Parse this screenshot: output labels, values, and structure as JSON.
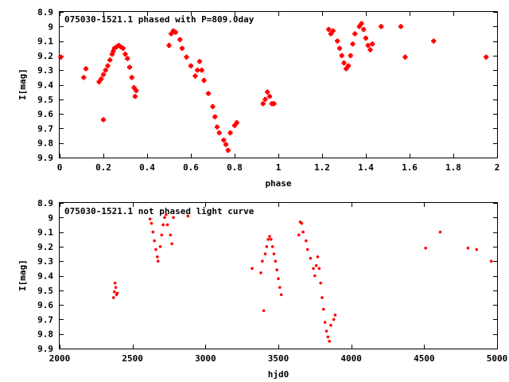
{
  "chart_data": [
    {
      "type": "scatter",
      "title": "075030-1521.1 phased with P=809.0day",
      "xlabel": "phase",
      "ylabel": "I[mag]",
      "xlim": [
        0,
        2
      ],
      "ylim": [
        8.9,
        9.9
      ],
      "y_inverted": true,
      "xticks": [
        0,
        0.2,
        0.4,
        0.6,
        0.8,
        1,
        1.2,
        1.4,
        1.6,
        1.8,
        2
      ],
      "xtick_labels": [
        "0",
        "0.2",
        "0.4",
        "0.6",
        "0.8",
        "1",
        "1.2",
        "1.4",
        "1.6",
        "1.8",
        "2"
      ],
      "yticks": [
        8.9,
        9,
        9.1,
        9.2,
        9.3,
        9.4,
        9.5,
        9.6,
        9.7,
        9.8,
        9.9
      ],
      "ytick_labels": [
        "8.9",
        "9",
        "9.1",
        "9.2",
        "9.3",
        "9.4",
        "9.5",
        "9.6",
        "9.7",
        "9.8",
        "9.9"
      ],
      "marker_color": "#ff0000",
      "marker": "plus",
      "points": [
        [
          0.005,
          9.21
        ],
        [
          0.11,
          9.35
        ],
        [
          0.12,
          9.29
        ],
        [
          0.2,
          9.64
        ],
        [
          0.18,
          9.38
        ],
        [
          0.19,
          9.36
        ],
        [
          0.2,
          9.33
        ],
        [
          0.21,
          9.3
        ],
        [
          0.22,
          9.27
        ],
        [
          0.23,
          9.23
        ],
        [
          0.24,
          9.19
        ],
        [
          0.245,
          9.17
        ],
        [
          0.25,
          9.15
        ],
        [
          0.26,
          9.14
        ],
        [
          0.27,
          9.13
        ],
        [
          0.28,
          9.14
        ],
        [
          0.29,
          9.15
        ],
        [
          0.3,
          9.19
        ],
        [
          0.31,
          9.22
        ],
        [
          0.32,
          9.28
        ],
        [
          0.33,
          9.35
        ],
        [
          0.34,
          9.42
        ],
        [
          0.345,
          9.48
        ],
        [
          0.35,
          9.44
        ],
        [
          0.5,
          9.13
        ],
        [
          0.51,
          9.05
        ],
        [
          0.52,
          9.03
        ],
        [
          0.53,
          9.04
        ],
        [
          0.55,
          9.09
        ],
        [
          0.56,
          9.15
        ],
        [
          0.58,
          9.21
        ],
        [
          0.6,
          9.27
        ],
        [
          0.62,
          9.34
        ],
        [
          0.63,
          9.3
        ],
        [
          0.64,
          9.24
        ],
        [
          0.65,
          9.3
        ],
        [
          0.66,
          9.37
        ],
        [
          0.68,
          9.46
        ],
        [
          0.7,
          9.55
        ],
        [
          0.71,
          9.62
        ],
        [
          0.72,
          9.69
        ],
        [
          0.73,
          9.73
        ],
        [
          0.75,
          9.78
        ],
        [
          0.76,
          9.81
        ],
        [
          0.77,
          9.85
        ],
        [
          0.78,
          9.73
        ],
        [
          0.8,
          9.68
        ],
        [
          0.81,
          9.66
        ],
        [
          0.93,
          9.53
        ],
        [
          0.94,
          9.5
        ],
        [
          0.95,
          9.45
        ],
        [
          0.96,
          9.48
        ],
        [
          0.97,
          9.53
        ],
        [
          0.98,
          9.53
        ],
        [
          1.23,
          9.02
        ],
        [
          1.24,
          9.05
        ],
        [
          1.25,
          9.03
        ],
        [
          1.27,
          9.1
        ],
        [
          1.28,
          9.15
        ],
        [
          1.29,
          9.2
        ],
        [
          1.3,
          9.25
        ],
        [
          1.31,
          9.29
        ],
        [
          1.32,
          9.27
        ],
        [
          1.33,
          9.2
        ],
        [
          1.34,
          9.12
        ],
        [
          1.35,
          9.05
        ],
        [
          1.37,
          9.0
        ],
        [
          1.38,
          8.98
        ],
        [
          1.39,
          9.02
        ],
        [
          1.4,
          9.08
        ],
        [
          1.41,
          9.13
        ],
        [
          1.42,
          9.16
        ],
        [
          1.43,
          9.12
        ],
        [
          1.47,
          9.0
        ],
        [
          1.56,
          9.0
        ],
        [
          1.58,
          9.21
        ],
        [
          1.71,
          9.1
        ],
        [
          1.95,
          9.21
        ]
      ]
    },
    {
      "type": "scatter",
      "title": "075030-1521.1 not phased light curve",
      "xlabel": "hjd0",
      "ylabel": "I[mag]",
      "xlim": [
        2000,
        5000
      ],
      "ylim": [
        8.9,
        9.9
      ],
      "y_inverted": true,
      "xticks": [
        2000,
        2500,
        3000,
        3500,
        4000,
        4500,
        5000
      ],
      "xtick_labels": [
        "2000",
        "2500",
        "3000",
        "3500",
        "4000",
        "4500",
        "5000"
      ],
      "yticks": [
        8.9,
        9,
        9.1,
        9.2,
        9.3,
        9.4,
        9.5,
        9.6,
        9.7,
        9.8,
        9.9
      ],
      "ytick_labels": [
        "8.9",
        "9",
        "9.1",
        "9.2",
        "9.3",
        "9.4",
        "9.5",
        "9.6",
        "9.7",
        "9.8",
        "9.9"
      ],
      "marker_color": "#ff0000",
      "marker": "dot",
      "points": [
        [
          2370,
          9.55
        ],
        [
          2375,
          9.51
        ],
        [
          2380,
          9.45
        ],
        [
          2385,
          9.48
        ],
        [
          2390,
          9.53
        ],
        [
          2395,
          9.52
        ],
        [
          2620,
          9.01
        ],
        [
          2630,
          9.04
        ],
        [
          2640,
          9.1
        ],
        [
          2650,
          9.16
        ],
        [
          2660,
          9.22
        ],
        [
          2670,
          9.27
        ],
        [
          2675,
          9.3
        ],
        [
          2690,
          9.2
        ],
        [
          2700,
          9.12
        ],
        [
          2710,
          9.05
        ],
        [
          2720,
          9.0
        ],
        [
          2730,
          8.98
        ],
        [
          2740,
          9.05
        ],
        [
          2760,
          9.12
        ],
        [
          2770,
          9.18
        ],
        [
          2780,
          9.0
        ],
        [
          2880,
          8.99
        ],
        [
          3320,
          9.35
        ],
        [
          3380,
          9.38
        ],
        [
          3390,
          9.3
        ],
        [
          3400,
          9.64
        ],
        [
          3410,
          9.25
        ],
        [
          3420,
          9.2
        ],
        [
          3430,
          9.15
        ],
        [
          3440,
          9.13
        ],
        [
          3450,
          9.15
        ],
        [
          3460,
          9.2
        ],
        [
          3470,
          9.25
        ],
        [
          3480,
          9.3
        ],
        [
          3490,
          9.36
        ],
        [
          3500,
          9.42
        ],
        [
          3510,
          9.48
        ],
        [
          3520,
          9.53
        ],
        [
          3640,
          9.12
        ],
        [
          3650,
          9.03
        ],
        [
          3660,
          9.04
        ],
        [
          3670,
          9.1
        ],
        [
          3690,
          9.16
        ],
        [
          3700,
          9.22
        ],
        [
          3720,
          9.28
        ],
        [
          3740,
          9.35
        ],
        [
          3750,
          9.4
        ],
        [
          3760,
          9.33
        ],
        [
          3770,
          9.27
        ],
        [
          3780,
          9.35
        ],
        [
          3790,
          9.45
        ],
        [
          3800,
          9.55
        ],
        [
          3810,
          9.63
        ],
        [
          3820,
          9.72
        ],
        [
          3830,
          9.78
        ],
        [
          3840,
          9.82
        ],
        [
          3850,
          9.85
        ],
        [
          3860,
          9.74
        ],
        [
          3880,
          9.7
        ],
        [
          3890,
          9.67
        ],
        [
          4510,
          9.21
        ],
        [
          4610,
          9.1
        ],
        [
          4800,
          9.21
        ],
        [
          4860,
          9.22
        ],
        [
          4960,
          9.3
        ]
      ]
    }
  ]
}
